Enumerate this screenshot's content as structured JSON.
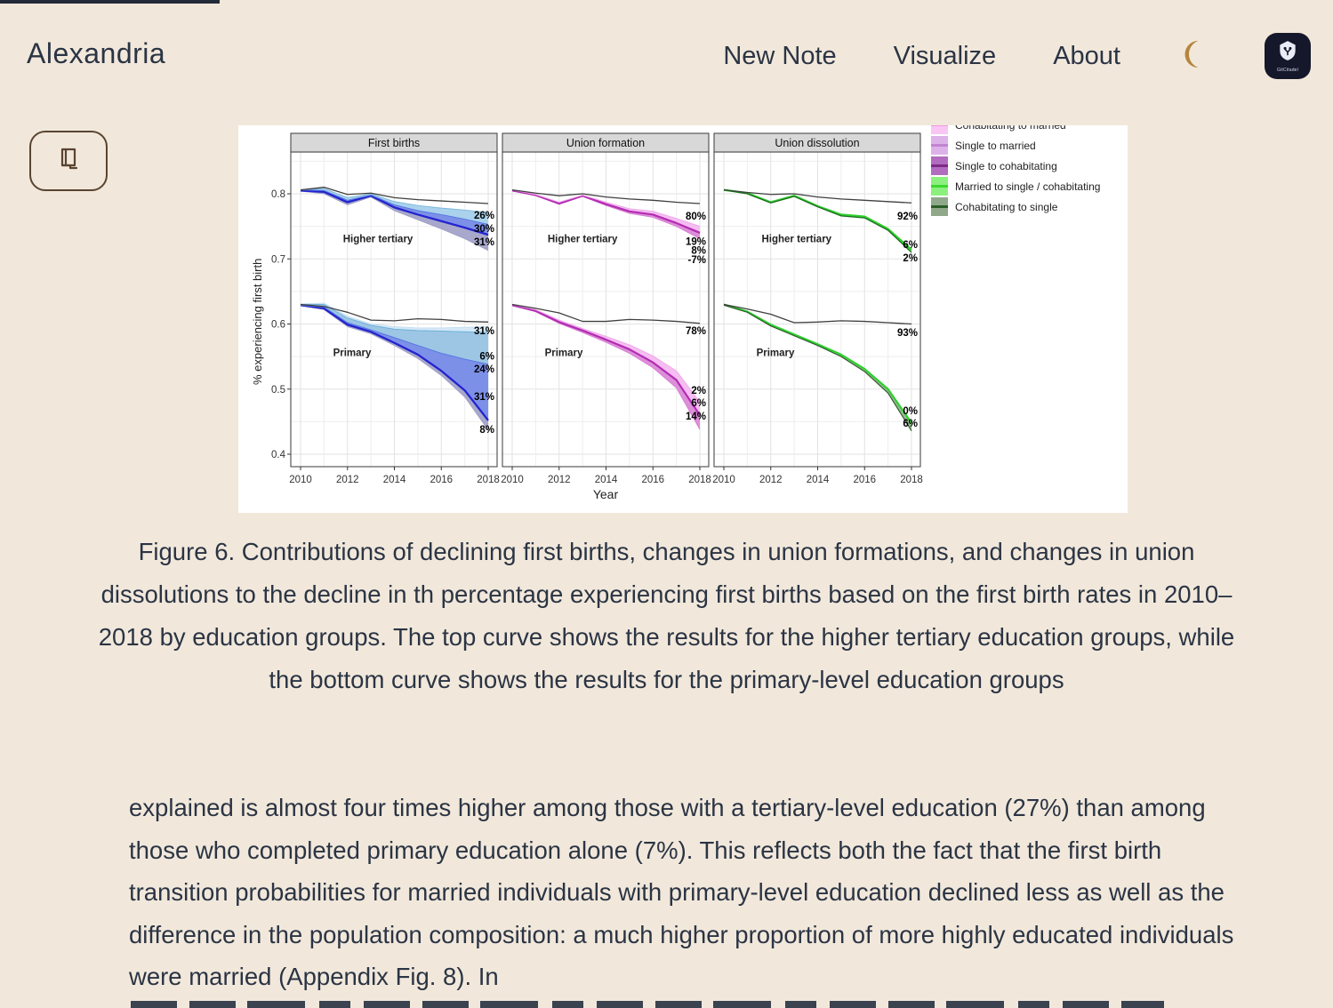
{
  "page": {
    "background": "#f1e8db",
    "text_color": "#2b3444",
    "accent_brown": "#594430",
    "moon_color": "#b5853f",
    "logo_bg": "#15182b"
  },
  "header": {
    "brand": "Alexandria",
    "nav": [
      {
        "label": "New Note"
      },
      {
        "label": "Visualize"
      },
      {
        "label": "About"
      }
    ],
    "theme_toggle_icon": "moon-icon",
    "logo_icon": "gitcitadel-shield-icon",
    "logo_text": "GitCitadel"
  },
  "reader_button": {
    "icon": "book-icon"
  },
  "caption": "Figure 6. Contributions of declining first births, changes in union formations, and changes in union dissolutions to the decline in th percentage experiencing first births based on the first birth rates in 2010–2018 by education groups. The top curve shows the results for the higher tertiary education groups, while the bottom curve shows the results for the primary-level education groups",
  "body_paragraph": "explained is almost four times higher among those with a tertiary-level education (27%) than among those who completed primary education alone (7%). This reflects both the fact that the first birth transition probabilities for married individuals with primary-level education declined less as well as the difference in the population composition: a much higher proportion of more highly educated individuals were married (Appendix Fig. 8). In",
  "chart_data": {
    "type": "line",
    "xlabel": "Year",
    "ylabel": "% experiencing first birth",
    "x": [
      2010,
      2011,
      2012,
      2013,
      2014,
      2015,
      2016,
      2017,
      2018
    ],
    "x_ticks": [
      "2010",
      "2012",
      "2014",
      "2016",
      "2018"
    ],
    "y_ticks": [
      "0.4",
      "0.5",
      "0.6",
      "0.7",
      "0.8"
    ],
    "ylim": [
      0.381,
      0.864
    ],
    "grid": true,
    "legend_position": "top-right",
    "legend": [
      {
        "label": "Cohabitating to married",
        "fill": "#f9c6f3",
        "line": "#ee9ae4",
        "clipped_at_top": true
      },
      {
        "label": "Single to married",
        "fill": "#ddb2e8",
        "line": "#c184d2"
      },
      {
        "label": "Single to cohabitating",
        "fill": "#b26cbf",
        "line": "#7c2a8a"
      },
      {
        "label": "Married to single / cohabitating",
        "fill": "#8cf07e",
        "line": "#3bd832"
      },
      {
        "label": "Cohabitating to single",
        "fill": "#8fa88a",
        "line": "#2c5e28"
      }
    ],
    "panels": [
      {
        "title": "First births",
        "groups": [
          {
            "name": "Higher tertiary",
            "name_pos": [
              2013.3,
              0.731
            ],
            "series": [
              {
                "role": "counterfactual",
                "color": "#3f3f3f",
                "width": 1.3,
                "y": [
                  0.806,
                  0.81,
                  0.799,
                  0.801,
                  0.794,
                  0.791,
                  0.789,
                  0.787,
                  0.785
                ]
              },
              {
                "role": "band-edge",
                "color": "#7db8dc",
                "width": 1.0,
                "y": [
                  0.806,
                  0.808,
                  0.794,
                  0.8,
                  0.788,
                  0.782,
                  0.778,
                  0.775,
                  0.771
                ]
              },
              {
                "role": "band-edge",
                "color": "#5577e0",
                "width": 1.0,
                "y": [
                  0.806,
                  0.805,
                  0.79,
                  0.798,
                  0.783,
                  0.774,
                  0.768,
                  0.761,
                  0.753
                ]
              },
              {
                "role": "observed",
                "color": "#2323cf",
                "width": 2.3,
                "y": [
                  0.805,
                  0.803,
                  0.787,
                  0.797,
                  0.779,
                  0.768,
                  0.758,
                  0.748,
                  0.737
                ]
              },
              {
                "role": "band-edge",
                "color": "#9b9bc4",
                "width": 0.8,
                "y": [
                  0.804,
                  0.8,
                  0.783,
                  0.795,
                  0.774,
                  0.76,
                  0.746,
                  0.731,
                  0.713
                ]
              }
            ],
            "bands": [
              {
                "upper": 1,
                "lower": 2,
                "fill": "#aad2ec"
              },
              {
                "upper": 2,
                "lower": 3,
                "fill": "#7d90e8"
              },
              {
                "upper": 3,
                "lower": 4,
                "fill": "#a8a8cc"
              }
            ],
            "annotations": [
              {
                "text": "26%",
                "value": 0.767
              },
              {
                "text": "30%",
                "value": 0.747
              },
              {
                "text": "31%",
                "value": 0.726
              }
            ]
          },
          {
            "name": "Primary",
            "name_pos": [
              2012.2,
              0.556
            ],
            "series": [
              {
                "role": "counterfactual",
                "color": "#3f3f3f",
                "width": 1.3,
                "y": [
                  0.63,
                  0.627,
                  0.618,
                  0.606,
                  0.605,
                  0.608,
                  0.607,
                  0.604,
                  0.603
                ]
              },
              {
                "role": "band-edge",
                "color": "#c2ddf0",
                "width": 0.9,
                "y": [
                  0.631,
                  0.632,
                  0.612,
                  0.6,
                  0.596,
                  0.594,
                  0.594,
                  0.595,
                  0.596
                ]
              },
              {
                "role": "band-edge",
                "color": "#6fb0d8",
                "width": 1.0,
                "y": [
                  0.63,
                  0.63,
                  0.609,
                  0.598,
                  0.592,
                  0.59,
                  0.589,
                  0.588,
                  0.587
                ]
              },
              {
                "role": "band-edge",
                "color": "#5577e0",
                "width": 1.0,
                "y": [
                  0.629,
                  0.626,
                  0.602,
                  0.591,
                  0.579,
                  0.567,
                  0.555,
                  0.546,
                  0.538
                ]
              },
              {
                "role": "observed",
                "color": "#2323cf",
                "width": 2.3,
                "y": [
                  0.629,
                  0.624,
                  0.599,
                  0.588,
                  0.571,
                  0.553,
                  0.528,
                  0.498,
                  0.452
                ]
              },
              {
                "role": "band-edge",
                "color": "#9b9bc4",
                "width": 0.8,
                "y": [
                  0.628,
                  0.622,
                  0.596,
                  0.585,
                  0.567,
                  0.547,
                  0.521,
                  0.488,
                  0.437
                ]
              }
            ],
            "bands": [
              {
                "upper": 1,
                "lower": 2,
                "fill": "#d5e8f6"
              },
              {
                "upper": 2,
                "lower": 3,
                "fill": "#9cc6e4"
              },
              {
                "upper": 3,
                "lower": 4,
                "fill": "#7d90e8"
              },
              {
                "upper": 4,
                "lower": 5,
                "fill": "#a8a8cc"
              }
            ],
            "annotations": [
              {
                "text": "31%",
                "value": 0.59
              },
              {
                "text": "6%",
                "value": 0.551
              },
              {
                "text": "24%",
                "value": 0.531
              },
              {
                "text": "31%",
                "value": 0.489
              },
              {
                "text": "8%",
                "value": 0.438
              }
            ]
          }
        ]
      },
      {
        "title": "Union formation",
        "groups": [
          {
            "name": "Higher tertiary",
            "name_pos": [
              2013.0,
              0.731
            ],
            "series": [
              {
                "role": "counterfactual",
                "color": "#3f3f3f",
                "width": 1.3,
                "y": [
                  0.806,
                  0.801,
                  0.797,
                  0.8,
                  0.795,
                  0.792,
                  0.79,
                  0.787,
                  0.785
                ]
              },
              {
                "role": "band-edge",
                "color": "#efa8ea",
                "width": 1.0,
                "y": [
                  0.806,
                  0.799,
                  0.787,
                  0.798,
                  0.787,
                  0.777,
                  0.773,
                  0.762,
                  0.75
                ]
              },
              {
                "role": "observed",
                "color": "#b32cb3",
                "width": 2.2,
                "y": [
                  0.805,
                  0.798,
                  0.785,
                  0.797,
                  0.784,
                  0.773,
                  0.768,
                  0.755,
                  0.74
                ]
              },
              {
                "role": "band-edge",
                "color": "#d77fd3",
                "width": 1.0,
                "y": [
                  0.805,
                  0.797,
                  0.784,
                  0.796,
                  0.782,
                  0.77,
                  0.764,
                  0.75,
                  0.731
                ]
              }
            ],
            "bands": [
              {
                "upper": 1,
                "lower": 2,
                "fill": "#f5bdf1"
              },
              {
                "upper": 2,
                "lower": 3,
                "fill": "#dd8fd9"
              }
            ],
            "annotations": [
              {
                "text": "80%",
                "value": 0.766
              },
              {
                "text": "19%",
                "value": 0.727
              },
              {
                "text": "8%",
                "value": 0.713
              },
              {
                "text": "-7%",
                "value": 0.699
              }
            ]
          },
          {
            "name": "Primary",
            "name_pos": [
              2012.2,
              0.556
            ],
            "series": [
              {
                "role": "counterfactual",
                "color": "#3f3f3f",
                "width": 1.3,
                "y": [
                  0.63,
                  0.624,
                  0.617,
                  0.604,
                  0.604,
                  0.607,
                  0.606,
                  0.604,
                  0.601
                ]
              },
              {
                "role": "band-edge",
                "color": "#efa8ea",
                "width": 1.0,
                "y": [
                  0.63,
                  0.622,
                  0.606,
                  0.593,
                  0.581,
                  0.568,
                  0.551,
                  0.528,
                  0.48
                ]
              },
              {
                "role": "observed",
                "color": "#b32cb3",
                "width": 2.2,
                "y": [
                  0.629,
                  0.62,
                  0.603,
                  0.59,
                  0.576,
                  0.561,
                  0.541,
                  0.514,
                  0.46
                ]
              },
              {
                "role": "band-edge",
                "color": "#d77fd3",
                "width": 1.0,
                "y": [
                  0.629,
                  0.619,
                  0.601,
                  0.587,
                  0.572,
                  0.555,
                  0.533,
                  0.502,
                  0.438
                ]
              }
            ],
            "bands": [
              {
                "upper": 1,
                "lower": 2,
                "fill": "#f5bdf1"
              },
              {
                "upper": 2,
                "lower": 3,
                "fill": "#dd8fd9"
              }
            ],
            "annotations": [
              {
                "text": "78%",
                "value": 0.59
              },
              {
                "text": "2%",
                "value": 0.498
              },
              {
                "text": "6%",
                "value": 0.479
              },
              {
                "text": "14%",
                "value": 0.459
              }
            ]
          }
        ]
      },
      {
        "title": "Union dissolution",
        "groups": [
          {
            "name": "Higher tertiary",
            "name_pos": [
              2013.1,
              0.731
            ],
            "series": [
              {
                "role": "counterfactual",
                "color": "#3f3f3f",
                "width": 1.3,
                "y": [
                  0.806,
                  0.802,
                  0.799,
                  0.8,
                  0.795,
                  0.792,
                  0.79,
                  0.788,
                  0.786
                ]
              },
              {
                "role": "band-edge",
                "color": "#1d6b1d",
                "width": 1.3,
                "y": [
                  0.806,
                  0.8,
                  0.786,
                  0.796,
                  0.78,
                  0.766,
                  0.763,
                  0.744,
                  0.71
                ]
              },
              {
                "role": "observed",
                "color": "#2ed02e",
                "width": 2.3,
                "y": [
                  0.806,
                  0.801,
                  0.787,
                  0.797,
                  0.781,
                  0.768,
                  0.765,
                  0.746,
                  0.714
                ]
              }
            ],
            "bands": [
              {
                "upper": 2,
                "lower": 1,
                "fill": "#8fe887"
              }
            ],
            "annotations": [
              {
                "text": "92%",
                "value": 0.766
              },
              {
                "text": "6%",
                "value": 0.722
              },
              {
                "text": "2%",
                "value": 0.702
              }
            ]
          },
          {
            "name": "Primary",
            "name_pos": [
              2012.2,
              0.556
            ],
            "series": [
              {
                "role": "counterfactual",
                "color": "#3f3f3f",
                "width": 1.3,
                "y": [
                  0.63,
                  0.623,
                  0.615,
                  0.602,
                  0.603,
                  0.605,
                  0.604,
                  0.602,
                  0.6
                ]
              },
              {
                "role": "band-edge",
                "color": "#2c5e28",
                "width": 1.2,
                "y": [
                  0.629,
                  0.618,
                  0.597,
                  0.582,
                  0.567,
                  0.55,
                  0.527,
                  0.494,
                  0.436
                ]
              },
              {
                "role": "observed",
                "color": "#2ed02e",
                "width": 2.2,
                "y": [
                  0.63,
                  0.619,
                  0.599,
                  0.584,
                  0.569,
                  0.553,
                  0.531,
                  0.5,
                  0.448
                ]
              }
            ],
            "bands": [
              {
                "upper": 2,
                "lower": 1,
                "fill": "#9cb895"
              }
            ],
            "annotations": [
              {
                "text": "93%",
                "value": 0.587
              },
              {
                "text": "0%",
                "value": 0.467
              },
              {
                "text": "6%",
                "value": 0.448
              }
            ]
          }
        ]
      }
    ]
  }
}
